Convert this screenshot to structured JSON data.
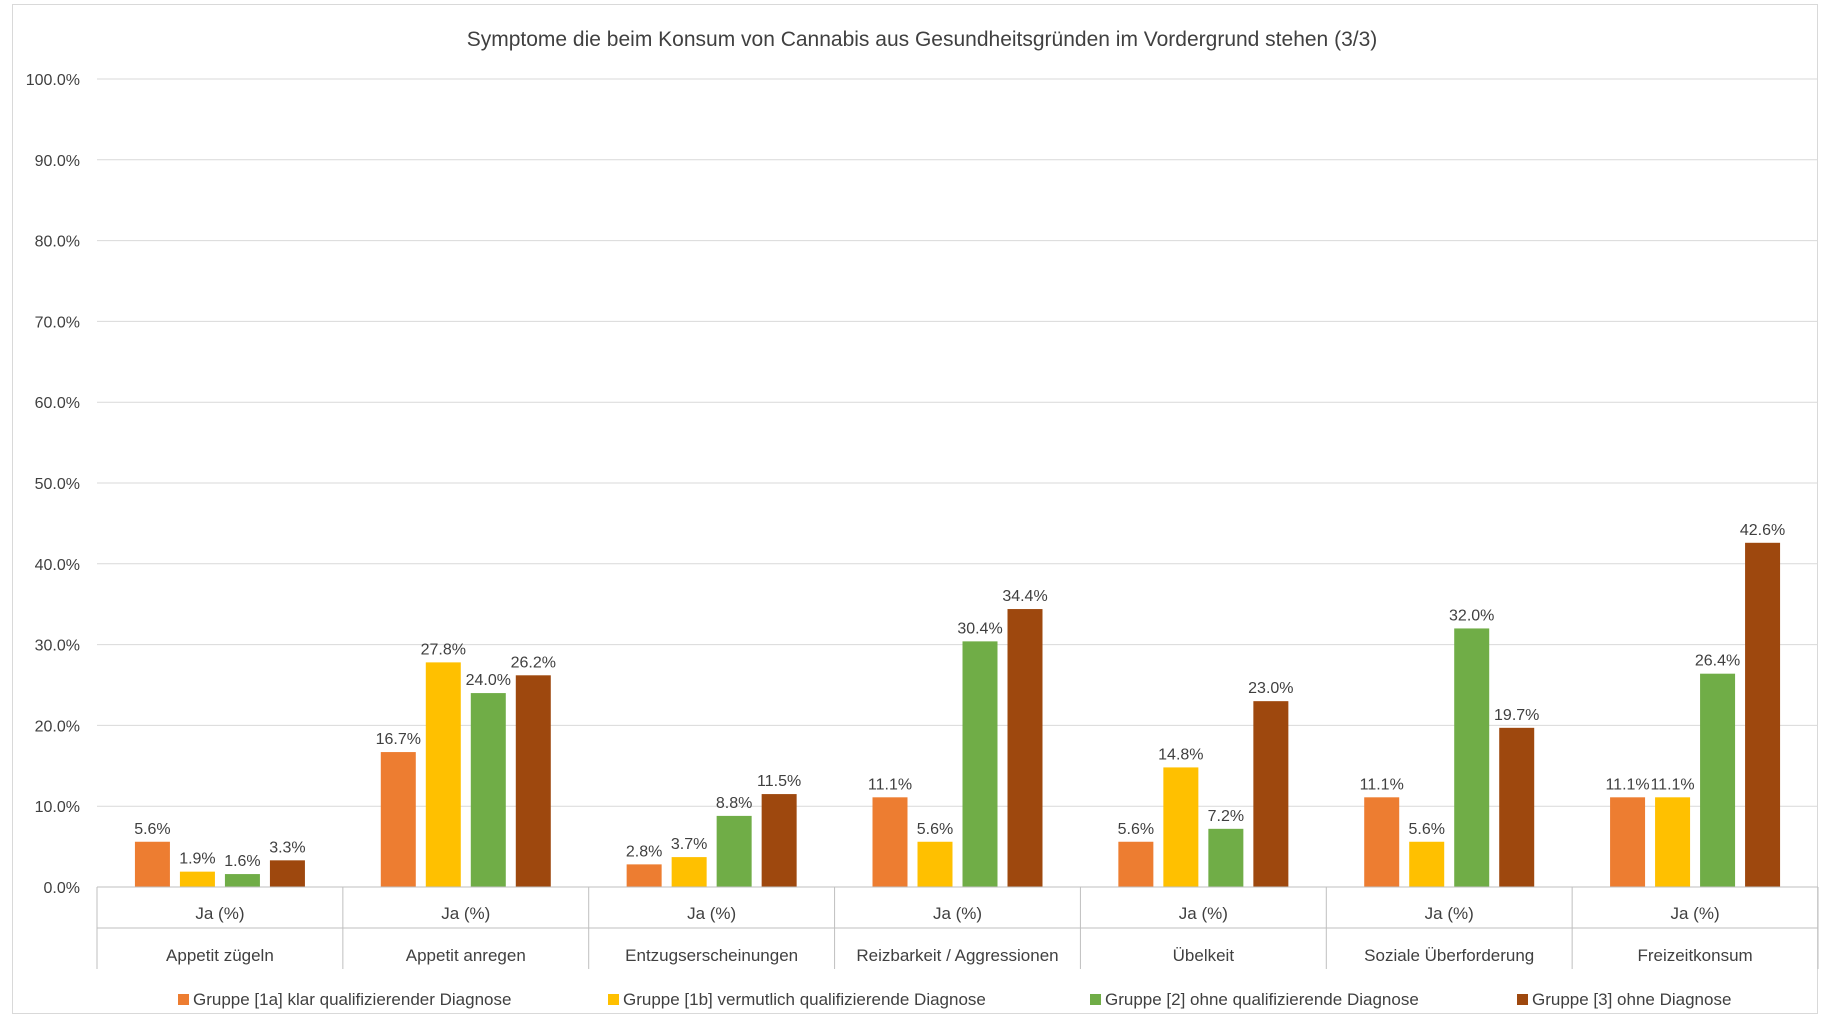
{
  "chart_data": {
    "type": "bar",
    "title": "Symptome die beim Konsum von Cannabis aus Gesundheitsgründen im Vordergrund stehen (3/3)",
    "ylim": [
      0,
      100
    ],
    "yticks": [
      "0.0%",
      "10.0%",
      "20.0%",
      "30.0%",
      "40.0%",
      "50.0%",
      "60.0%",
      "70.0%",
      "80.0%",
      "90.0%",
      "100.0%"
    ],
    "grid": true,
    "legend_position": "bottom",
    "subcategory_label": "Ja (%)",
    "categories": [
      "Appetit zügeln",
      "Appetit anregen",
      "Entzugserscheinungen",
      "Reizbarkeit / Aggressionen",
      "Übelkeit",
      "Soziale Überforderung",
      "Freizeitkonsum"
    ],
    "series": [
      {
        "name": "Gruppe [1a] klar qualifizierender Diagnose",
        "color": "#ED7D31",
        "values": [
          5.6,
          16.7,
          2.8,
          11.1,
          5.6,
          11.1,
          11.1
        ],
        "labels": [
          "5.6%",
          "16.7%",
          "2.8%",
          "11.1%",
          "5.6%",
          "11.1%",
          "11.1%"
        ]
      },
      {
        "name": "Gruppe [1b] vermutlich qualifizierende Diagnose",
        "color": "#FFC000",
        "values": [
          1.9,
          27.8,
          3.7,
          5.6,
          14.8,
          5.6,
          11.1
        ],
        "labels": [
          "1.9%",
          "27.8%",
          "3.7%",
          "5.6%",
          "14.8%",
          "5.6%",
          "11.1%"
        ]
      },
      {
        "name": "Gruppe [2] ohne qualifizierende Diagnose",
        "color": "#70AD47",
        "values": [
          1.6,
          24.0,
          8.8,
          30.4,
          7.2,
          32.0,
          26.4
        ],
        "labels": [
          "1.6%",
          "24.0%",
          "8.8%",
          "30.4%",
          "7.2%",
          "32.0%",
          "26.4%"
        ]
      },
      {
        "name": "Gruppe [3] ohne Diagnose",
        "color": "#9E480E",
        "values": [
          3.3,
          26.2,
          11.5,
          34.4,
          23.0,
          19.7,
          42.6
        ],
        "labels": [
          "3.3%",
          "26.2%",
          "11.5%",
          "34.4%",
          "23.0%",
          "19.7%",
          "42.6%"
        ]
      }
    ]
  }
}
